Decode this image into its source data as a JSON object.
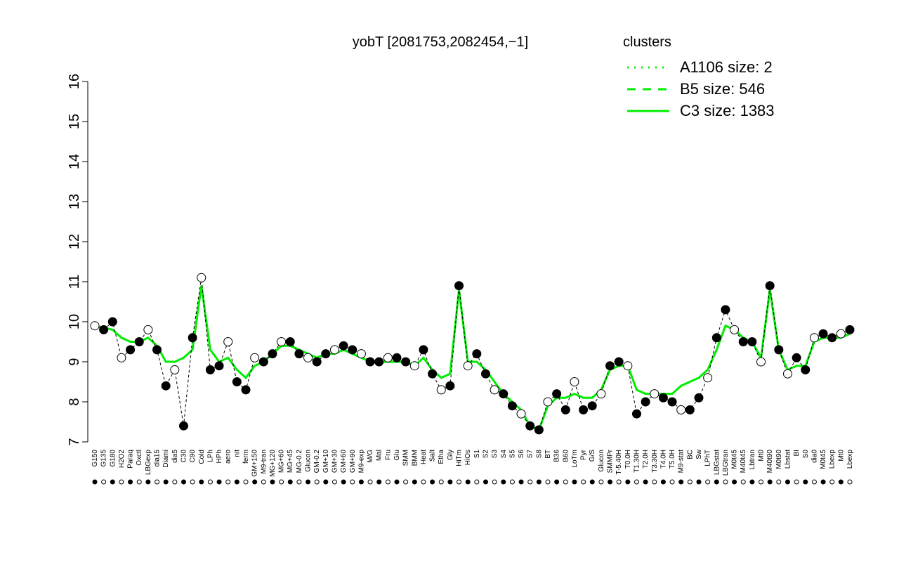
{
  "chart_data": {
    "type": "line",
    "title": "yobT [2081753,2082454,−1]",
    "legend_title": "clusters",
    "legend": [
      {
        "name": "A1106 size: 2",
        "dash": "dotted"
      },
      {
        "name": "B5 size: 546",
        "dash": "dashed"
      },
      {
        "name": "C3 size: 1383",
        "dash": "solid"
      }
    ],
    "legend_color": "#00ee00",
    "line_color": "#00ee00",
    "categories": [
      "G150",
      "G135",
      "G180",
      "H2O2",
      "Paraq",
      "Oxctl",
      "LBGexp",
      "dia15",
      "Diami",
      "dia5",
      "C30",
      "C90",
      "Cold",
      "LPh",
      "HPh",
      "aero",
      "nit",
      "ferm",
      "GM+150",
      "M9-tran",
      "MG+120",
      "MG+60",
      "MG+45",
      "MG-0.2",
      "Glucon",
      "GM-0.2",
      "GM+10",
      "GM+30",
      "GM+60",
      "GM+90",
      "M9-exp",
      "M/G",
      "Mal",
      "Fru",
      "Glu",
      "SMM",
      "BMM",
      "Heat",
      "Salt",
      "Etha",
      "Gly",
      "HiTm",
      "HiOs",
      "S1",
      "S2",
      "S3",
      "S4",
      "S5",
      "S6",
      "S7",
      "S8",
      "BT",
      "B36",
      "B60",
      "LoTm",
      "Pyr",
      "G/S",
      "Glucon",
      "SMMPr",
      "T-5.40H",
      "T0.0H",
      "T1.30H",
      "T2.0H",
      "T3.30H",
      "T4.0H",
      "T5.0H",
      "M9-stat",
      "BC",
      "Sw",
      "LPhT",
      "LBGstat",
      "LBGtran",
      "M0t45",
      "M40t45",
      "Lbtran",
      "Mt0",
      "M40t90",
      "M0t90",
      "Lbstat",
      "BI",
      "S0",
      "dia0",
      "M0t45",
      "Lbexp",
      "Mt0",
      "Lbexp"
    ],
    "values": [
      9.9,
      9.8,
      10.0,
      9.1,
      9.3,
      9.5,
      9.8,
      9.3,
      8.4,
      8.8,
      7.4,
      9.6,
      11.1,
      8.8,
      8.9,
      9.5,
      8.5,
      8.3,
      9.1,
      9.0,
      9.2,
      9.5,
      9.5,
      9.2,
      9.1,
      9.0,
      9.2,
      9.3,
      9.4,
      9.3,
      9.2,
      9.0,
      9.0,
      9.1,
      9.1,
      9.0,
      8.9,
      9.3,
      8.7,
      8.3,
      8.4,
      10.9,
      8.9,
      9.2,
      8.7,
      8.3,
      8.2,
      7.9,
      7.7,
      7.4,
      7.3,
      8.0,
      8.2,
      7.8,
      8.5,
      7.8,
      7.9,
      8.2,
      8.9,
      9.0,
      8.9,
      7.7,
      8.0,
      8.2,
      8.1,
      8.0,
      7.8,
      7.8,
      8.1,
      8.6,
      9.6,
      10.3,
      9.8,
      9.5,
      9.5,
      9.0,
      10.9,
      9.3,
      8.7,
      9.1,
      8.8,
      9.6,
      9.7,
      9.6,
      9.7,
      9.8
    ],
    "line_values": [
      9.9,
      9.85,
      9.8,
      9.6,
      9.5,
      9.5,
      9.6,
      9.4,
      9.0,
      9.0,
      9.1,
      9.3,
      10.9,
      9.3,
      9.0,
      9.1,
      8.8,
      8.6,
      8.9,
      9.0,
      9.2,
      9.4,
      9.4,
      9.3,
      9.2,
      9.1,
      9.2,
      9.2,
      9.3,
      9.2,
      9.1,
      9.0,
      9.0,
      9.0,
      9.0,
      9.0,
      8.9,
      9.1,
      8.8,
      8.6,
      8.7,
      10.8,
      9.0,
      9.0,
      8.8,
      8.5,
      8.2,
      8.0,
      7.8,
      7.4,
      7.3,
      7.9,
      8.1,
      8.1,
      8.2,
      8.1,
      8.1,
      8.3,
      8.8,
      8.9,
      8.9,
      8.3,
      8.2,
      8.2,
      8.2,
      8.2,
      8.4,
      8.5,
      8.6,
      8.8,
      9.3,
      9.9,
      9.8,
      9.6,
      9.5,
      9.1,
      10.8,
      9.3,
      8.8,
      8.9,
      8.9,
      9.5,
      9.6,
      9.6,
      9.6,
      9.7
    ],
    "ylim": [
      7,
      16
    ],
    "yticks": [
      7,
      8,
      9,
      10,
      11,
      12,
      13,
      14,
      15,
      16
    ]
  }
}
